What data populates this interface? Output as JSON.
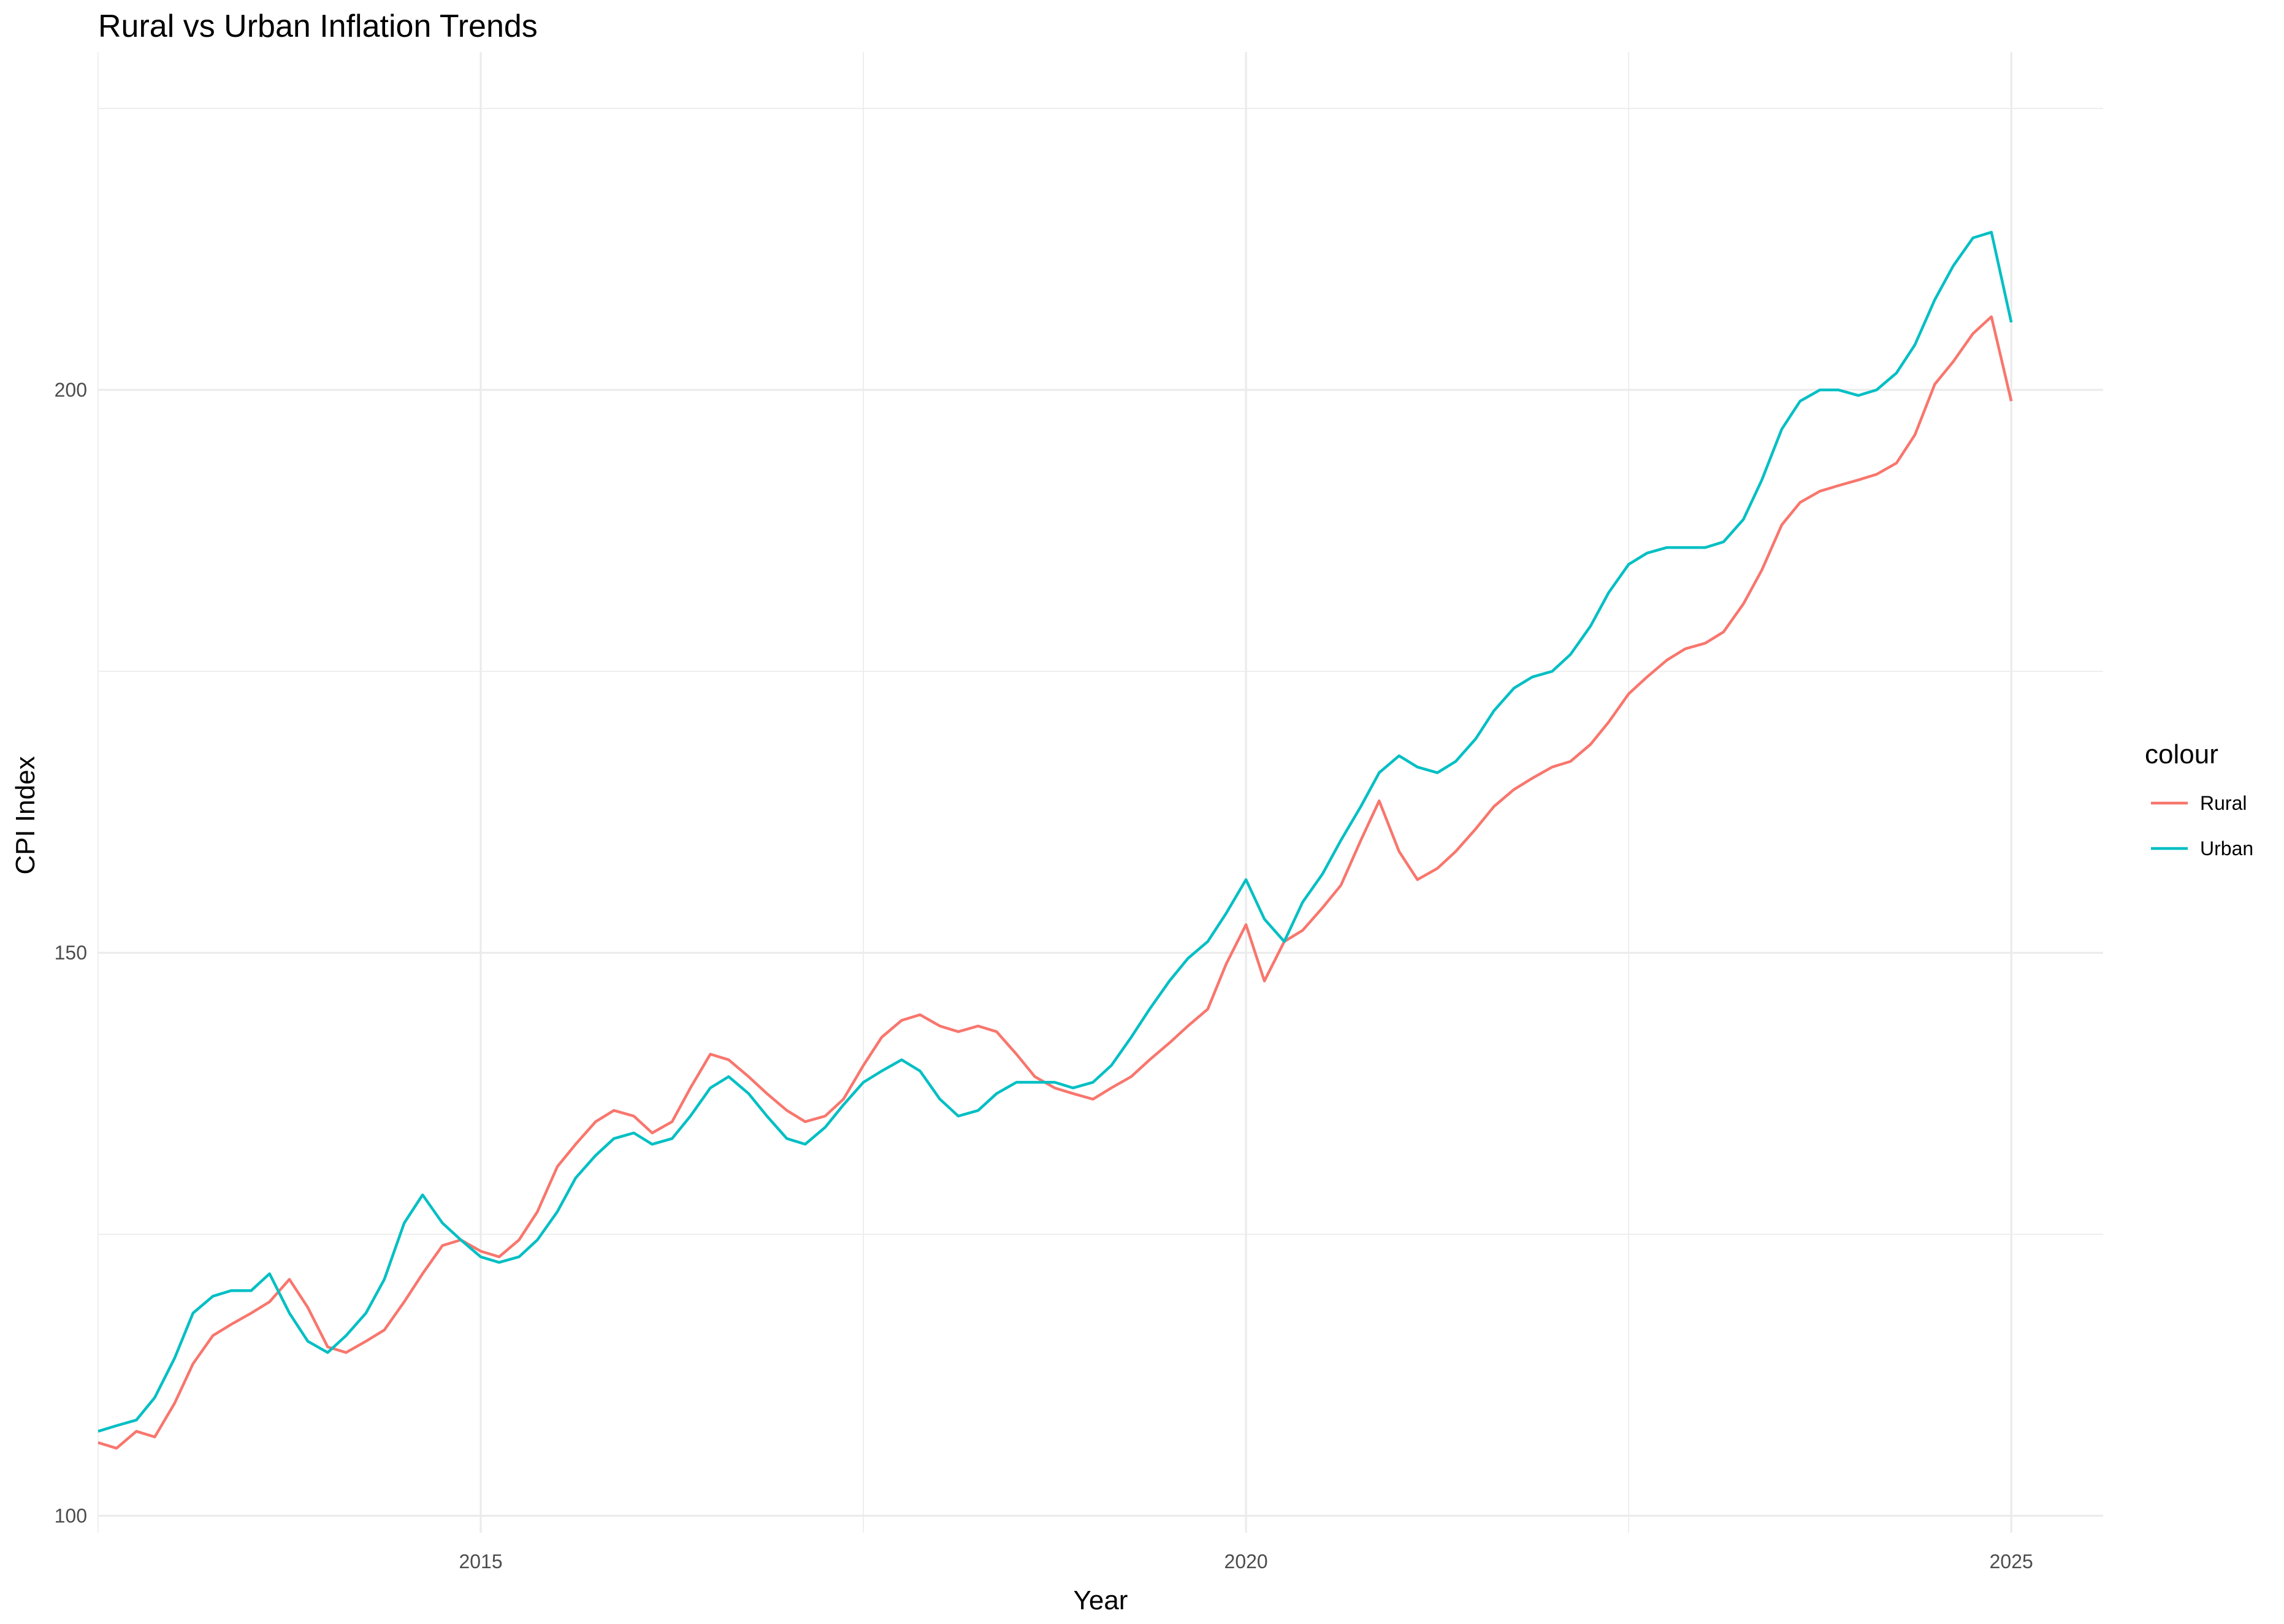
{
  "chart_data": {
    "type": "line",
    "title": "Rural vs Urban Inflation Trends",
    "xlabel": "Year",
    "ylabel": "CPI Index",
    "x_ticks": [
      2015,
      2020,
      2025
    ],
    "x_tick_labels": [
      "2015",
      "2020",
      "2025"
    ],
    "y_ticks": [
      100,
      150,
      200
    ],
    "y_tick_labels": [
      "100",
      "150",
      "200"
    ],
    "xlim": [
      2012.5,
      2025.6
    ],
    "ylim": [
      98.5,
      230.0
    ],
    "grid": true,
    "legend": {
      "title": "colour",
      "position": "right"
    },
    "series": [
      {
        "name": "Rural",
        "color": "#F8766D",
        "points": [
          [
            2012.5,
            106.5
          ],
          [
            2012.62,
            106.0
          ],
          [
            2012.75,
            107.5
          ],
          [
            2012.87,
            107.0
          ],
          [
            2013.0,
            110.0
          ],
          [
            2013.12,
            113.5
          ],
          [
            2013.25,
            116.0
          ],
          [
            2013.37,
            117.0
          ],
          [
            2013.5,
            118.0
          ],
          [
            2013.62,
            119.0
          ],
          [
            2013.75,
            121.0
          ],
          [
            2013.87,
            118.5
          ],
          [
            2014.0,
            115.0
          ],
          [
            2014.12,
            114.5
          ],
          [
            2014.25,
            115.5
          ],
          [
            2014.37,
            116.5
          ],
          [
            2014.5,
            119.0
          ],
          [
            2014.62,
            121.5
          ],
          [
            2014.75,
            124.0
          ],
          [
            2014.87,
            124.5
          ],
          [
            2015.0,
            123.5
          ],
          [
            2015.12,
            123.0
          ],
          [
            2015.25,
            124.5
          ],
          [
            2015.37,
            127.0
          ],
          [
            2015.5,
            131.0
          ],
          [
            2015.62,
            133.0
          ],
          [
            2015.75,
            135.0
          ],
          [
            2015.87,
            136.0
          ],
          [
            2016.0,
            135.5
          ],
          [
            2016.12,
            134.0
          ],
          [
            2016.25,
            135.0
          ],
          [
            2016.37,
            138.0
          ],
          [
            2016.5,
            141.0
          ],
          [
            2016.62,
            140.5
          ],
          [
            2016.75,
            139.0
          ],
          [
            2016.87,
            137.5
          ],
          [
            2017.0,
            136.0
          ],
          [
            2017.12,
            135.0
          ],
          [
            2017.25,
            135.5
          ],
          [
            2017.37,
            137.0
          ],
          [
            2017.5,
            140.0
          ],
          [
            2017.62,
            142.5
          ],
          [
            2017.75,
            144.0
          ],
          [
            2017.87,
            144.5
          ],
          [
            2018.0,
            143.5
          ],
          [
            2018.12,
            143.0
          ],
          [
            2018.25,
            143.5
          ],
          [
            2018.37,
            143.0
          ],
          [
            2018.5,
            141.0
          ],
          [
            2018.62,
            139.0
          ],
          [
            2018.75,
            138.0
          ],
          [
            2018.87,
            137.5
          ],
          [
            2019.0,
            137.0
          ],
          [
            2019.12,
            138.0
          ],
          [
            2019.25,
            139.0
          ],
          [
            2019.37,
            140.5
          ],
          [
            2019.5,
            142.0
          ],
          [
            2019.62,
            143.5
          ],
          [
            2019.75,
            145.0
          ],
          [
            2019.87,
            149.0
          ],
          [
            2020.0,
            152.5
          ],
          [
            2020.12,
            147.5
          ],
          [
            2020.25,
            151.0
          ],
          [
            2020.37,
            152.0
          ],
          [
            2020.5,
            154.0
          ],
          [
            2020.62,
            156.0
          ],
          [
            2020.75,
            160.0
          ],
          [
            2020.87,
            163.5
          ],
          [
            2021.0,
            159.0
          ],
          [
            2021.12,
            156.5
          ],
          [
            2021.25,
            157.5
          ],
          [
            2021.37,
            159.0
          ],
          [
            2021.5,
            161.0
          ],
          [
            2021.62,
            163.0
          ],
          [
            2021.75,
            164.5
          ],
          [
            2021.87,
            165.5
          ],
          [
            2022.0,
            166.5
          ],
          [
            2022.12,
            167.0
          ],
          [
            2022.25,
            168.5
          ],
          [
            2022.37,
            170.5
          ],
          [
            2022.5,
            173.0
          ],
          [
            2022.62,
            174.5
          ],
          [
            2022.75,
            176.0
          ],
          [
            2022.87,
            177.0
          ],
          [
            2023.0,
            177.5
          ],
          [
            2023.12,
            178.5
          ],
          [
            2023.25,
            181.0
          ],
          [
            2023.37,
            184.0
          ],
          [
            2023.5,
            188.0
          ],
          [
            2023.62,
            190.0
          ],
          [
            2023.75,
            191.0
          ],
          [
            2023.87,
            191.5
          ],
          [
            2024.0,
            192.0
          ],
          [
            2024.12,
            192.5
          ],
          [
            2024.25,
            193.5
          ],
          [
            2024.37,
            196.0
          ],
          [
            2024.5,
            200.5
          ],
          [
            2024.62,
            202.5
          ],
          [
            2024.75,
            205.0
          ],
          [
            2024.87,
            206.5
          ],
          [
            2025.0,
            199.0
          ]
        ]
      },
      {
        "name": "Urban",
        "color": "#00BFC4",
        "points": [
          [
            2012.5,
            107.5
          ],
          [
            2012.62,
            108.0
          ],
          [
            2012.75,
            108.5
          ],
          [
            2012.87,
            110.5
          ],
          [
            2013.0,
            114.0
          ],
          [
            2013.12,
            118.0
          ],
          [
            2013.25,
            119.5
          ],
          [
            2013.37,
            120.0
          ],
          [
            2013.5,
            120.0
          ],
          [
            2013.62,
            121.5
          ],
          [
            2013.75,
            118.0
          ],
          [
            2013.87,
            115.5
          ],
          [
            2014.0,
            114.5
          ],
          [
            2014.12,
            116.0
          ],
          [
            2014.25,
            118.0
          ],
          [
            2014.37,
            121.0
          ],
          [
            2014.5,
            126.0
          ],
          [
            2014.62,
            128.5
          ],
          [
            2014.75,
            126.0
          ],
          [
            2014.87,
            124.5
          ],
          [
            2015.0,
            123.0
          ],
          [
            2015.12,
            122.5
          ],
          [
            2015.25,
            123.0
          ],
          [
            2015.37,
            124.5
          ],
          [
            2015.5,
            127.0
          ],
          [
            2015.62,
            130.0
          ],
          [
            2015.75,
            132.0
          ],
          [
            2015.87,
            133.5
          ],
          [
            2016.0,
            134.0
          ],
          [
            2016.12,
            133.0
          ],
          [
            2016.25,
            133.5
          ],
          [
            2016.37,
            135.5
          ],
          [
            2016.5,
            138.0
          ],
          [
            2016.62,
            139.0
          ],
          [
            2016.75,
            137.5
          ],
          [
            2016.87,
            135.5
          ],
          [
            2017.0,
            133.5
          ],
          [
            2017.12,
            133.0
          ],
          [
            2017.25,
            134.5
          ],
          [
            2017.37,
            136.5
          ],
          [
            2017.5,
            138.5
          ],
          [
            2017.62,
            139.5
          ],
          [
            2017.75,
            140.5
          ],
          [
            2017.87,
            139.5
          ],
          [
            2018.0,
            137.0
          ],
          [
            2018.12,
            135.5
          ],
          [
            2018.25,
            136.0
          ],
          [
            2018.37,
            137.5
          ],
          [
            2018.5,
            138.5
          ],
          [
            2018.62,
            138.5
          ],
          [
            2018.75,
            138.5
          ],
          [
            2018.87,
            138.0
          ],
          [
            2019.0,
            138.5
          ],
          [
            2019.12,
            140.0
          ],
          [
            2019.25,
            142.5
          ],
          [
            2019.37,
            145.0
          ],
          [
            2019.5,
            147.5
          ],
          [
            2019.62,
            149.5
          ],
          [
            2019.75,
            151.0
          ],
          [
            2019.87,
            153.5
          ],
          [
            2020.0,
            156.5
          ],
          [
            2020.12,
            153.0
          ],
          [
            2020.25,
            151.0
          ],
          [
            2020.37,
            154.5
          ],
          [
            2020.5,
            157.0
          ],
          [
            2020.62,
            160.0
          ],
          [
            2020.75,
            163.0
          ],
          [
            2020.87,
            166.0
          ],
          [
            2021.0,
            167.5
          ],
          [
            2021.12,
            166.5
          ],
          [
            2021.25,
            166.0
          ],
          [
            2021.37,
            167.0
          ],
          [
            2021.5,
            169.0
          ],
          [
            2021.62,
            171.5
          ],
          [
            2021.75,
            173.5
          ],
          [
            2021.87,
            174.5
          ],
          [
            2022.0,
            175.0
          ],
          [
            2022.12,
            176.5
          ],
          [
            2022.25,
            179.0
          ],
          [
            2022.37,
            182.0
          ],
          [
            2022.5,
            184.5
          ],
          [
            2022.62,
            185.5
          ],
          [
            2022.75,
            186.0
          ],
          [
            2022.87,
            186.0
          ],
          [
            2023.0,
            186.0
          ],
          [
            2023.12,
            186.5
          ],
          [
            2023.25,
            188.5
          ],
          [
            2023.37,
            192.0
          ],
          [
            2023.5,
            196.5
          ],
          [
            2023.62,
            199.0
          ],
          [
            2023.75,
            200.0
          ],
          [
            2023.87,
            200.0
          ],
          [
            2024.0,
            199.5
          ],
          [
            2024.12,
            200.0
          ],
          [
            2024.25,
            201.5
          ],
          [
            2024.37,
            204.0
          ],
          [
            2024.5,
            208.0
          ],
          [
            2024.62,
            211.0
          ],
          [
            2024.75,
            213.5
          ],
          [
            2024.87,
            214.0
          ],
          [
            2025.0,
            206.0
          ]
        ]
      }
    ]
  }
}
